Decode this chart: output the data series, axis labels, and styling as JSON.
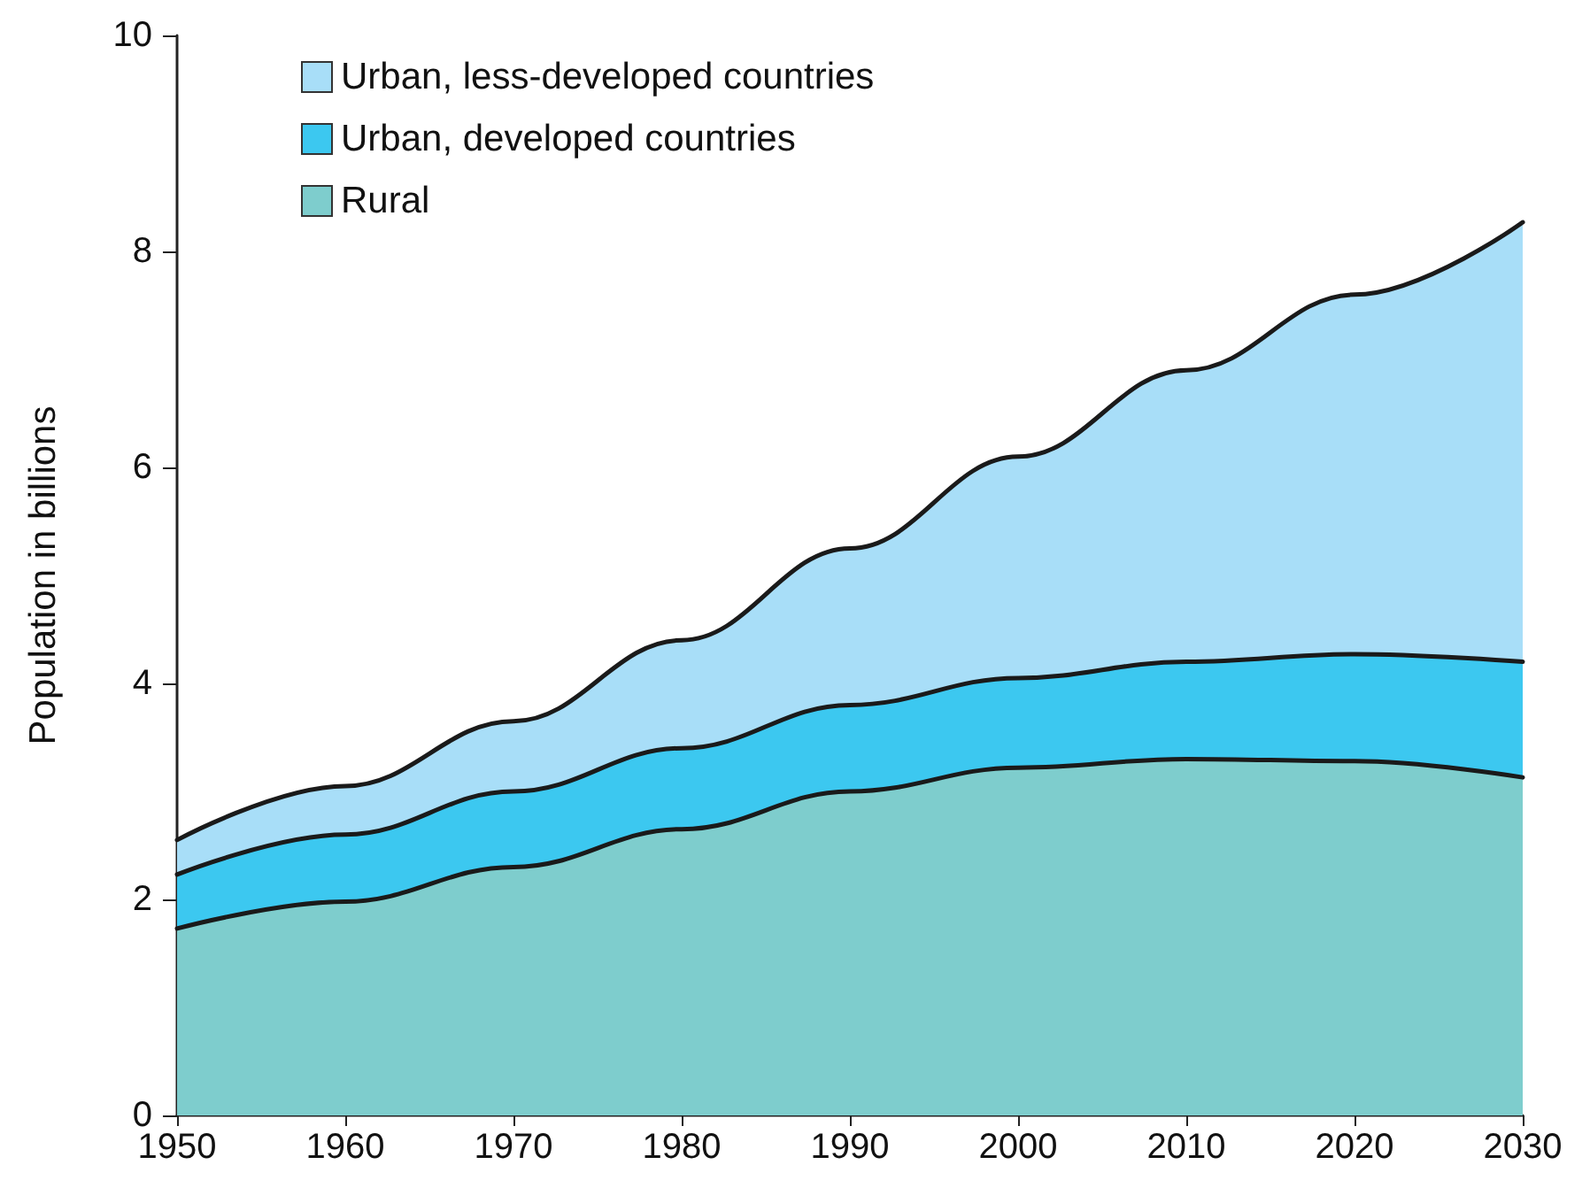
{
  "chart_data": {
    "type": "area",
    "stacked": true,
    "ylabel": "Population in billions",
    "x": [
      1950,
      1960,
      1970,
      1980,
      1990,
      2000,
      2010,
      2020,
      2030
    ],
    "xlim": [
      1950,
      2030
    ],
    "xticks": [
      1950,
      1960,
      1970,
      1980,
      1990,
      2000,
      2010,
      2020,
      2030
    ],
    "ylim": [
      0,
      10
    ],
    "yticks": [
      0,
      2,
      4,
      6,
      8,
      10
    ],
    "grid": false,
    "legend": "top left",
    "marker": "none",
    "line_style": "solid",
    "series": [
      {
        "name": "Rural",
        "color": "#7ecdcd",
        "values": [
          1.73,
          1.98,
          2.3,
          2.65,
          3.0,
          3.22,
          3.3,
          3.28,
          3.13
        ]
      },
      {
        "name": "Urban, developed countries",
        "color": "#3cc8f0",
        "values": [
          0.5,
          0.62,
          0.7,
          0.75,
          0.8,
          0.83,
          0.9,
          0.99,
          1.07
        ]
      },
      {
        "name": "Urban, less-developed countries",
        "color": "#a8def8",
        "values": [
          0.32,
          0.45,
          0.65,
          1.0,
          1.45,
          2.05,
          2.7,
          3.33,
          4.07
        ]
      }
    ]
  }
}
